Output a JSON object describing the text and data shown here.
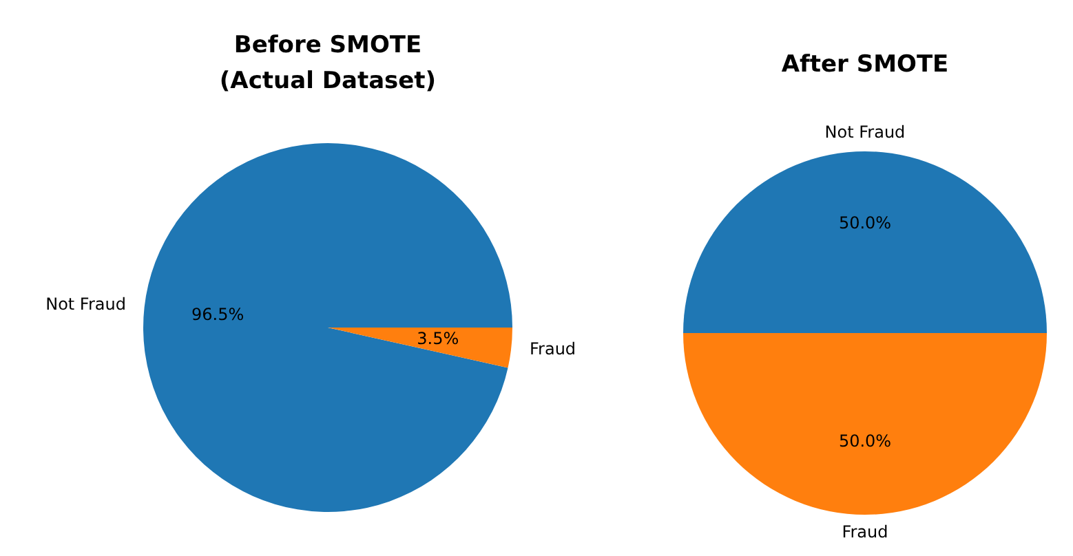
{
  "chart_data": [
    {
      "type": "pie",
      "title": "Before SMOTE\n(Actual Dataset)",
      "categories": [
        "Not Fraud",
        "Fraud"
      ],
      "values": [
        96.5,
        3.5
      ],
      "colors": [
        "#1f77b4",
        "#ff7f0e"
      ],
      "value_labels": [
        "96.5%",
        "3.5%"
      ]
    },
    {
      "type": "pie",
      "title": "After SMOTE",
      "categories": [
        "Not Fraud",
        "Fraud"
      ],
      "values": [
        50,
        50
      ],
      "colors": [
        "#1f77b4",
        "#ff7f0e"
      ],
      "value_labels": [
        "50.0%",
        "50.0%"
      ]
    }
  ]
}
